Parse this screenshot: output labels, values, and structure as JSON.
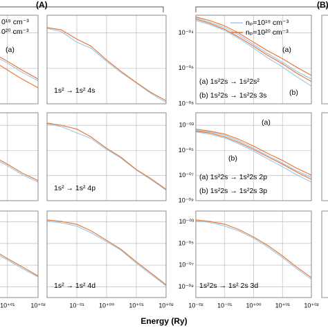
{
  "chart_data": [
    {
      "type": "line",
      "log_x": true,
      "log_y": true,
      "grid": true,
      "xlim": [
        0.01,
        100
      ],
      "ylim": [
        1e-08,
        0.001
      ],
      "xticks": [
        0.01,
        0.1,
        1,
        10,
        100
      ],
      "yticks": [
        1e-08,
        1e-06,
        0.0001
      ],
      "x": [
        0.01,
        0.03,
        0.1,
        0.3,
        1,
        3,
        10,
        30,
        100
      ],
      "annotations": [
        "(a)"
      ],
      "series": [
        {
          "name": "0¹⁹ cm⁻³",
          "color": "#9ecae8",
          "values": [
            0.0005,
            0.0003,
            0.00015,
            6e-05,
            2e-05,
            6e-06,
            2e-06,
            6e-07,
            2e-07
          ]
        },
        {
          "name": "0²⁰ cm⁻³",
          "color": "#e8793a",
          "values": [
            0.0006,
            0.00035,
            0.00018,
            7e-05,
            2.5e-05,
            8e-06,
            2.5e-06,
            8e-07,
            2.5e-07
          ]
        },
        {
          "color": "#e8793a",
          "values": [
            0.0004,
            0.0002,
            9e-05,
            3e-05,
            1e-05,
            3e-06,
            8e-07,
            2.5e-07,
            8e-08
          ]
        }
      ]
    },
    {
      "type": "line",
      "log_x": true,
      "log_y": true,
      "grid": true,
      "xlim": [
        0.01,
        100
      ],
      "ylim": [
        1e-09,
        0.01
      ],
      "xticks": [
        0.01,
        0.1,
        1,
        10,
        100
      ],
      "yticks": [
        1e-09,
        1e-07,
        1e-05,
        0.001
      ],
      "x": [
        0.01,
        0.03,
        0.1,
        0.3,
        1,
        3,
        10,
        30,
        100
      ],
      "series": [
        {
          "color": "#9ecae8",
          "values": [
            0.001,
            0.0005,
            0.0002,
            6e-05,
            1.5e-05,
            3e-06,
            6e-07,
            1.2e-07,
            3e-08
          ]
        },
        {
          "color": "#e8793a",
          "values": [
            0.0012,
            0.0006,
            0.00025,
            8e-05,
            2e-05,
            4e-06,
            8e-07,
            1.6e-07,
            4e-08
          ]
        }
      ]
    },
    {
      "type": "line",
      "log_x": true,
      "log_y": true,
      "grid": true,
      "xlim": [
        0.01,
        100
      ],
      "ylim": [
        1e-10,
        0.01
      ],
      "xticks": [
        0.01,
        0.1,
        1,
        {
          "value": 10,
          "label": "10⁺⁰¹"
        },
        {
          "value": 100,
          "label": "10⁺⁰²"
        }
      ],
      "yticks": [
        1e-09,
        1e-07,
        1e-05,
        0.001
      ],
      "x": [
        0.01,
        0.03,
        0.1,
        0.3,
        1,
        3,
        10,
        30,
        100
      ],
      "series": [
        {
          "color": "#9ecae8",
          "values": [
            0.001,
            0.0006,
            0.0002,
            5e-05,
            1e-05,
            2e-06,
            3e-07,
            5e-08,
            8e-09
          ]
        },
        {
          "color": "#e8793a",
          "values": [
            0.0012,
            0.0007,
            0.00025,
            7e-05,
            1.5e-05,
            3e-06,
            4e-07,
            7e-08,
            1e-08
          ]
        }
      ]
    },
    {
      "type": "line",
      "log_x": true,
      "log_y": true,
      "grid": true,
      "xlim": [
        0.01,
        100
      ],
      "ylim": [
        1e-08,
        0.001
      ],
      "xticks": [
        0.01,
        0.1,
        1,
        10,
        100
      ],
      "yticks": [
        1e-08,
        1e-06,
        0.0001
      ],
      "x": [
        0.01,
        0.03,
        0.1,
        0.3,
        1,
        3,
        10,
        30,
        100
      ],
      "annotations": [
        "1s² → 1s² 4s"
      ],
      "series": [
        {
          "color": "#9ecae8",
          "values": [
            0.00018,
            0.00012,
            3e-05,
            1.4e-05,
            2.5e-06,
            6e-07,
            1.5e-07,
            4e-08,
            1.2e-08
          ]
        },
        {
          "color": "#e8793a",
          "values": [
            0.0002,
            0.00015,
            4.5e-05,
            1.8e-05,
            3e-06,
            7e-07,
            1.6e-07,
            4.5e-08,
            1.5e-08
          ]
        }
      ]
    },
    {
      "type": "line",
      "log_x": true,
      "log_y": true,
      "grid": true,
      "xlim": [
        0.01,
        100
      ],
      "ylim": [
        1e-09,
        0.01
      ],
      "xticks": [
        0.01,
        0.1,
        1,
        10,
        100
      ],
      "yticks": [
        1e-09,
        1e-07,
        1e-05,
        0.001
      ],
      "x": [
        0.01,
        0.03,
        0.1,
        0.3,
        1,
        3,
        10,
        30,
        100
      ],
      "annotations": [
        "1s² → 1s² 4p"
      ],
      "series": [
        {
          "color": "#9ecae8",
          "values": [
            0.0013,
            0.0008,
            0.00025,
            9e-05,
            1.2e-05,
            2.5e-06,
            2.8e-07,
            5e-08,
            7e-09
          ]
        },
        {
          "color": "#e8793a",
          "values": [
            0.0015,
            0.001,
            0.0005,
            0.00012,
            1.5e-05,
            3e-06,
            3e-07,
            6e-08,
            8e-09
          ]
        }
      ]
    },
    {
      "type": "line",
      "log_x": true,
      "log_y": true,
      "grid": true,
      "xlim": [
        0.01,
        100
      ],
      "ylim": [
        1e-10,
        0.01
      ],
      "xticks": [
        {
          "value": 0.1,
          "label": "10⁻⁰¹"
        },
        {
          "value": 1,
          "label": "10⁺⁰⁰"
        },
        {
          "value": 10,
          "label": "10⁺⁰¹"
        },
        {
          "value": 100,
          "label": "10⁺⁰²"
        }
      ],
      "yticks": [
        1e-09,
        1e-07,
        1e-05,
        0.001
      ],
      "x": [
        0.01,
        0.03,
        0.1,
        0.3,
        1,
        3,
        10,
        30,
        100
      ],
      "annotations": [
        "1s² → 1s² 4d"
      ],
      "series": [
        {
          "color": "#9ecae8",
          "values": [
            0.0012,
            0.0008,
            0.0004,
            0.0001,
            1.5e-05,
            2.5e-06,
            1.5e-07,
            1.5e-08,
            1.2e-09
          ]
        },
        {
          "color": "#e8793a",
          "values": [
            0.0015,
            0.0011,
            0.0006,
            0.00015,
            2e-05,
            3e-06,
            2e-07,
            2e-08,
            1.5e-09
          ]
        }
      ]
    },
    {
      "type": "line",
      "log_x": true,
      "log_y": true,
      "grid": true,
      "xlim": [
        0.01,
        100
      ],
      "ylim": [
        1e-08,
        0.001
      ],
      "xticks": [
        0.01,
        0.1,
        1,
        10,
        100
      ],
      "yticks": [
        {
          "value": 1e-08,
          "label": "10⁻⁰⁸"
        },
        {
          "value": 1e-06,
          "label": "10⁻⁰⁶"
        },
        {
          "value": 0.0001,
          "label": "10⁻⁰⁴"
        }
      ],
      "x": [
        0.01,
        0.03,
        0.1,
        0.3,
        1,
        3,
        10,
        30,
        100
      ],
      "annotations": [
        "(a) 1s²2s → 1s²2s²",
        "(b) 1s²2s → 1s²2s 3s",
        "(a)",
        "(b)"
      ],
      "series": [
        {
          "name": "nₚ=10¹⁹ cm⁻³",
          "color": "#9ecae8",
          "values": [
            0.0007,
            0.0004,
            0.0002,
            8e-05,
            2.2e-05,
            7e-06,
            2.2e-06,
            7e-07,
            2.5e-07
          ]
        },
        {
          "name": "nₚ=10²⁰ cm⁻³",
          "color": "#e8793a",
          "values": [
            0.0008,
            0.0005,
            0.00025,
            0.0001,
            3e-05,
            1e-05,
            3.5e-06,
            1.2e-06,
            4e-07
          ]
        },
        {
          "color": "#9ecae8",
          "values": [
            0.0005,
            0.0003,
            0.00014,
            5e-05,
            1.4e-05,
            4e-06,
            1.2e-06,
            3.5e-07,
            1e-07
          ]
        },
        {
          "color": "#e8793a",
          "values": [
            0.0006,
            0.00035,
            0.00016,
            6e-05,
            1.8e-05,
            5.5e-06,
            1.8e-06,
            5.5e-07,
            1.8e-07
          ]
        }
      ]
    },
    {
      "type": "line",
      "log_x": true,
      "log_y": true,
      "grid": true,
      "xlim": [
        0.01,
        100
      ],
      "ylim": [
        1e-09,
        0.01
      ],
      "xticks": [
        0.01,
        0.1,
        1,
        10,
        100
      ],
      "yticks": [
        {
          "value": 1e-09,
          "label": "10⁻⁰⁹"
        },
        {
          "value": 1e-07,
          "label": "10⁻⁰⁷"
        },
        {
          "value": 1e-05,
          "label": "10⁻⁰⁵"
        },
        {
          "value": 0.001,
          "label": "10⁻⁰³"
        }
      ],
      "x": [
        0.01,
        0.03,
        0.1,
        0.3,
        1,
        3,
        10,
        30,
        100
      ],
      "annotations": [
        "(a) 1s²2s → 1s²2s 2p",
        "(b) 1s²2s → 1s²2s 3p",
        "(a)",
        "(b)"
      ],
      "series": [
        {
          "color": "#9ecae8",
          "values": [
            0.0004,
            0.0003,
            0.00016,
            6e-05,
            1.5e-05,
            4e-06,
            1e-06,
            2.5e-07,
            7e-08
          ]
        },
        {
          "color": "#e8793a",
          "values": [
            0.0005,
            0.00035,
            0.0002,
            8e-05,
            2.2e-05,
            6e-06,
            1.6e-06,
            4e-07,
            1.1e-07
          ]
        },
        {
          "color": "#9ecae8",
          "values": [
            0.0003,
            0.0002,
            0.0001,
            3.5e-05,
            9e-06,
            2.2e-06,
            5e-07,
            1.2e-07,
            3e-08
          ]
        },
        {
          "color": "#e8793a",
          "values": [
            0.00035,
            0.00025,
            0.00012,
            4.5e-05,
            1.2e-05,
            3.2e-06,
            8e-07,
            2e-07,
            5e-08
          ]
        }
      ]
    },
    {
      "type": "line",
      "log_x": true,
      "log_y": true,
      "grid": true,
      "xlim": [
        0.01,
        100
      ],
      "ylim": [
        1e-10,
        0.01
      ],
      "xticks": [
        {
          "value": 0.01,
          "label": "10⁻⁰²"
        },
        {
          "value": 0.1,
          "label": "10⁻⁰¹"
        },
        {
          "value": 1,
          "label": "10⁺⁰⁰"
        },
        {
          "value": 10,
          "label": "10⁺⁰¹"
        },
        {
          "value": 100,
          "label": "10⁺⁰²"
        }
      ],
      "yticks": [
        {
          "value": 1e-09,
          "label": "10⁻⁰⁹"
        },
        {
          "value": 1e-07,
          "label": "10⁻⁰⁷"
        },
        {
          "value": 1e-05,
          "label": "10⁻⁰⁵"
        },
        {
          "value": 0.001,
          "label": "10⁻⁰³"
        }
      ],
      "x": [
        0.01,
        0.03,
        0.1,
        0.3,
        1,
        3,
        10,
        30,
        100
      ],
      "annotations": [
        "1s²2s → 1s² 2s 3d"
      ],
      "series": [
        {
          "color": "#9ecae8",
          "values": [
            0.0012,
            0.0009,
            0.0004,
            0.00015,
            3e-05,
            5e-06,
            5e-07,
            5e-08,
            5e-09
          ]
        },
        {
          "color": "#e8793a",
          "values": [
            0.0015,
            0.0011,
            0.0006,
            0.0002,
            4e-05,
            7e-06,
            7e-07,
            7e-08,
            7e-09
          ]
        }
      ]
    }
  ],
  "panel_groups": [
    "(A)",
    "(B)"
  ],
  "x_axis_title": "Energy (Ry)"
}
